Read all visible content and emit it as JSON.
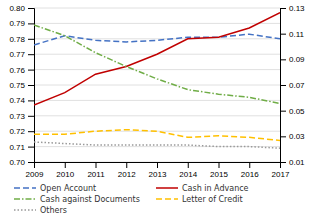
{
  "chart_data": {
    "type": "line",
    "x": [
      2009,
      2010,
      2011,
      2012,
      2013,
      2014,
      2015,
      2016,
      2017
    ],
    "xlim": [
      2009,
      2017
    ],
    "xticks": [
      2009,
      2010,
      2011,
      2012,
      2013,
      2014,
      2015,
      2016,
      2017
    ],
    "ylim": [
      0.7,
      0.8
    ],
    "yticks": [
      {
        "value": 0.7,
        "label": "0.70"
      },
      0.71,
      0.72,
      0.73,
      0.74,
      0.75,
      0.76,
      0.77,
      0.78,
      0.79,
      {
        "value": 0.8,
        "label": "0.80"
      }
    ],
    "y2lim": [
      0.01,
      0.13
    ],
    "y2ticks": [
      0.01,
      0.03,
      0.05,
      0.07,
      0.09,
      0.11,
      0.13
    ],
    "grid": true,
    "legend": "bottom",
    "series": [
      {
        "name": "Open Account",
        "color": "#4472c4",
        "line_style": "dashed",
        "values": [
          0.776,
          0.782,
          0.779,
          0.778,
          0.779,
          0.781,
          0.781,
          0.783,
          0.78
        ]
      },
      {
        "name": "Cash in Advance",
        "color": "#c00000",
        "line_style": "solid",
        "values": [
          0.737,
          0.745,
          0.757,
          0.762,
          0.77,
          0.78,
          0.781,
          0.787,
          0.797
        ]
      },
      {
        "name": "Cash against Documents",
        "color": "#70ad47",
        "line_style": "dashdot",
        "values": [
          0.789,
          0.782,
          0.771,
          0.762,
          0.754,
          0.747,
          0.744,
          0.742,
          0.738
        ]
      },
      {
        "name": "Letter of Credit",
        "color": "#ffc000",
        "line_style": "dashed",
        "values": [
          0.718,
          0.718,
          0.72,
          0.721,
          0.72,
          0.716,
          0.717,
          0.716,
          0.714
        ]
      },
      {
        "name": "Others",
        "color": "#999999",
        "line_style": "dotted",
        "values": [
          0.713,
          0.712,
          0.711,
          0.711,
          0.711,
          0.711,
          0.71,
          0.71,
          0.709
        ]
      }
    ]
  }
}
